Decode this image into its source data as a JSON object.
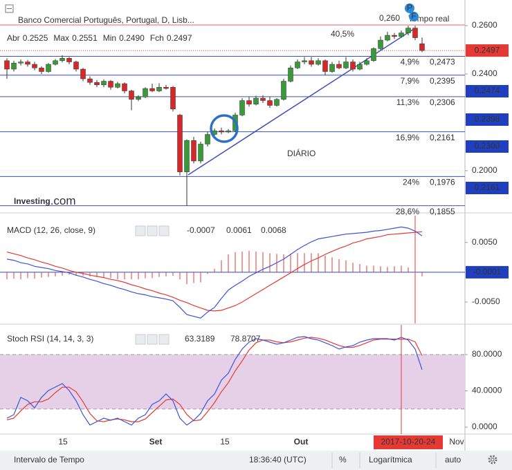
{
  "header": {
    "title": "Banco Comercial Português, Portugal, D, Lisb...",
    "realtime": "Tempo real",
    "ohlc": [
      {
        "label": "Abr",
        "value": "0.2525"
      },
      {
        "label": "Max",
        "value": "0.2551"
      },
      {
        "label": "Min",
        "value": "0.2490"
      },
      {
        "label": "Fch",
        "value": "0.2497"
      }
    ]
  },
  "price_panel": {
    "type": "candlestick",
    "ylim": [
      0.1834,
      0.2706
    ],
    "yticks": [
      {
        "value": 0.26,
        "label": "0.2600"
      },
      {
        "value": 0.24,
        "label": "0.2400"
      },
      {
        "value": 0.2,
        "label": "0.2000"
      }
    ],
    "up_color": "#3a9a3a",
    "down_color": "#d62828",
    "candles": [
      [
        0.2455,
        0.2465,
        0.238,
        0.242
      ],
      [
        0.242,
        0.2455,
        0.241,
        0.2445
      ],
      [
        0.2445,
        0.246,
        0.2435,
        0.245
      ],
      [
        0.245,
        0.2458,
        0.243,
        0.244
      ],
      [
        0.244,
        0.245,
        0.2415,
        0.2425
      ],
      [
        0.2425,
        0.2432,
        0.24,
        0.241
      ],
      [
        0.241,
        0.2445,
        0.2405,
        0.244
      ],
      [
        0.244,
        0.2462,
        0.2435,
        0.2455
      ],
      [
        0.2455,
        0.2478,
        0.2448,
        0.2465
      ],
      [
        0.2465,
        0.247,
        0.244,
        0.245
      ],
      [
        0.245,
        0.2455,
        0.241,
        0.242
      ],
      [
        0.242,
        0.2425,
        0.237,
        0.238
      ],
      [
        0.238,
        0.239,
        0.2355,
        0.2365
      ],
      [
        0.2365,
        0.2375,
        0.2345,
        0.2355
      ],
      [
        0.2355,
        0.2378,
        0.2345,
        0.237
      ],
      [
        0.237,
        0.2375,
        0.2335,
        0.2345
      ],
      [
        0.2345,
        0.2368,
        0.234,
        0.236
      ],
      [
        0.236,
        0.2365,
        0.232,
        0.233
      ],
      [
        0.233,
        0.2335,
        0.225,
        0.2295
      ],
      [
        0.2295,
        0.2312,
        0.2288,
        0.2305
      ],
      [
        0.2305,
        0.2345,
        0.23,
        0.234
      ],
      [
        0.234,
        0.236,
        0.2325,
        0.233
      ],
      [
        0.233,
        0.2362,
        0.2325,
        0.2345
      ],
      [
        0.2345,
        0.2355,
        0.2335,
        0.234
      ],
      [
        0.2345,
        0.235,
        0.2245,
        0.2255
      ],
      [
        0.223,
        0.2235,
        0.198,
        0.1995
      ],
      [
        0.1995,
        0.213,
        0.1855,
        0.2125
      ],
      [
        0.2125,
        0.214,
        0.203,
        0.204
      ],
      [
        0.204,
        0.212,
        0.203,
        0.211
      ],
      [
        0.211,
        0.216,
        0.21,
        0.215
      ],
      [
        0.215,
        0.2175,
        0.214,
        0.2165
      ],
      [
        0.2165,
        0.2178,
        0.215,
        0.216
      ],
      [
        0.216,
        0.2172,
        0.2155,
        0.2165
      ],
      [
        0.2165,
        0.224,
        0.216,
        0.223
      ],
      [
        0.223,
        0.23,
        0.2225,
        0.229
      ],
      [
        0.229,
        0.2305,
        0.2265,
        0.2275
      ],
      [
        0.2275,
        0.231,
        0.227,
        0.23
      ],
      [
        0.23,
        0.2312,
        0.228,
        0.229
      ],
      [
        0.229,
        0.2305,
        0.226,
        0.227
      ],
      [
        0.227,
        0.23,
        0.2265,
        0.2295
      ],
      [
        0.2295,
        0.238,
        0.229,
        0.237
      ],
      [
        0.237,
        0.2435,
        0.2365,
        0.2425
      ],
      [
        0.2425,
        0.246,
        0.242,
        0.245
      ],
      [
        0.245,
        0.247,
        0.244,
        0.2455
      ],
      [
        0.2455,
        0.247,
        0.243,
        0.244
      ],
      [
        0.244,
        0.2465,
        0.2435,
        0.2455
      ],
      [
        0.2455,
        0.246,
        0.2395,
        0.241
      ],
      [
        0.241,
        0.245,
        0.2405,
        0.244
      ],
      [
        0.244,
        0.2455,
        0.242,
        0.2425
      ],
      [
        0.2425,
        0.247,
        0.242,
        0.245
      ],
      [
        0.245,
        0.246,
        0.241,
        0.242
      ],
      [
        0.242,
        0.245,
        0.2415,
        0.244
      ],
      [
        0.244,
        0.2465,
        0.2435,
        0.2455
      ],
      [
        0.2455,
        0.251,
        0.245,
        0.2505
      ],
      [
        0.2505,
        0.2555,
        0.25,
        0.254
      ],
      [
        0.254,
        0.2575,
        0.2535,
        0.256
      ],
      [
        0.256,
        0.257,
        0.2545,
        0.2555
      ],
      [
        0.2555,
        0.258,
        0.255,
        0.257
      ],
      [
        0.257,
        0.26,
        0.256,
        0.259
      ],
      [
        0.259,
        0.26,
        0.254,
        0.255
      ],
      [
        0.2525,
        0.2551,
        0.249,
        0.2497
      ]
    ],
    "annotations": {
      "price": "0,260",
      "change": "40,5%",
      "timeframe": "DIÁRIO"
    },
    "fib_levels": [
      {
        "pct": "4,9%",
        "label": "0,2473",
        "value": 0.2473
      },
      {
        "pct": "7,9%",
        "label": "0,2395",
        "value": 0.2395
      },
      {
        "pct": "11,3%",
        "label": "0,2306",
        "value": 0.2306
      },
      {
        "pct": "16,9%",
        "label": "0,2161",
        "value": 0.2161
      },
      {
        "pct": "24%",
        "label": "0,1976",
        "value": 0.1976
      },
      {
        "pct": "28,6%",
        "label": "0,1855",
        "value": 0.1855
      }
    ],
    "last_price": {
      "value": 0.2497,
      "label": "0.2497"
    },
    "axis_badges": [
      "0.2474",
      "0.2398",
      "0.2300",
      "0.2161"
    ],
    "watermark": {
      "brand": "Investing",
      "suffix": ".com"
    }
  },
  "macd_panel": {
    "type": "macd",
    "title": "MACD (12, 26, close, 9)",
    "ylim": [
      -0.0086,
      0.0095
    ],
    "yticks": [
      {
        "value": 0.005,
        "label": "0.0050"
      },
      {
        "value": -0.005,
        "label": "-0.0050"
      }
    ],
    "badge": "-0.0001",
    "macd": {
      "color": "#3f51d5",
      "values": [
        0.0022,
        0.002,
        0.0016,
        0.0014,
        0.001,
        0.0008,
        0.0006,
        0.0003,
        0.0001,
        -0.0001,
        -0.0005,
        -0.0008,
        -0.0012,
        -0.0015,
        -0.0019,
        -0.0022,
        -0.0026,
        -0.0029,
        -0.0033,
        -0.0036,
        -0.0038,
        -0.0041,
        -0.0043,
        -0.0045,
        -0.0048,
        -0.0059,
        -0.0071,
        -0.0074,
        -0.0077,
        -0.0067,
        -0.0059,
        -0.0044,
        -0.003,
        -0.0022,
        -0.0015,
        -0.0007,
        -0.0001,
        0.0005,
        0.001,
        0.0016,
        0.0022,
        0.003,
        0.0038,
        0.0045,
        0.0051,
        0.0056,
        0.0058,
        0.006,
        0.0062,
        0.0064,
        0.0065,
        0.0066,
        0.0067,
        0.0069,
        0.007,
        0.0072,
        0.0074,
        0.0076,
        0.0074,
        0.0069,
        0.0061
      ]
    },
    "signal": {
      "color": "#e53935",
      "values": [
        0.0034,
        0.0031,
        0.0028,
        0.0024,
        0.0021,
        0.0017,
        0.0014,
        0.001,
        0.0007,
        0.0003,
        0,
        -0.0002,
        -0.0005,
        -0.0007,
        -0.0009,
        -0.0012,
        -0.0014,
        -0.0017,
        -0.0021,
        -0.0024,
        -0.0028,
        -0.0031,
        -0.0035,
        -0.0038,
        -0.0042,
        -0.0047,
        -0.0051,
        -0.0056,
        -0.006,
        -0.0064,
        -0.0065,
        -0.0064,
        -0.006,
        -0.0056,
        -0.005,
        -0.0043,
        -0.0036,
        -0.0029,
        -0.0022,
        -0.0015,
        -0.0008,
        -0.0001,
        0.0006,
        0.0013,
        0.0019,
        0.0024,
        0.003,
        0.0035,
        0.004,
        0.0044,
        0.0049,
        0.0052,
        0.0056,
        0.0058,
        0.006,
        0.0063,
        0.0064,
        0.0065,
        0.0066,
        0.0067,
        0.0068
      ]
    },
    "histogram": {
      "color": "#e53935",
      "values": [
        -0.0012,
        -0.0011,
        -0.0012,
        -0.001,
        -0.0011,
        -0.0009,
        -0.0008,
        -0.0007,
        -0.0006,
        -0.0004,
        -0.0005,
        -0.0006,
        -0.0007,
        -0.0008,
        -0.001,
        -0.001,
        -0.0012,
        -0.0012,
        -0.0012,
        -0.0012,
        -0.001,
        -0.001,
        -0.0008,
        -0.0007,
        -0.0006,
        -0.0012,
        -0.002,
        -0.0018,
        -0.0017,
        -0.0003,
        0.0006,
        0.002,
        0.003,
        0.0034,
        0.0035,
        0.0036,
        0.0035,
        0.0034,
        0.0032,
        0.0031,
        0.003,
        0.0031,
        0.0032,
        0.0032,
        0.0032,
        0.0032,
        0.0028,
        0.0025,
        0.0022,
        0.002,
        0.0016,
        0.0014,
        0.0011,
        0.0011,
        0.001,
        0.0009,
        0.001,
        0.0011,
        0.0008,
        0.0002,
        -0.0007
      ]
    }
  },
  "stoch_panel": {
    "type": "stoch_rsi",
    "title": "Stoch RSI (14, 14, 3, 3)",
    "ylim": [
      -7.6,
      111.2
    ],
    "yticks": [
      {
        "value": 80,
        "label": "80.0000"
      },
      {
        "value": 40,
        "label": "40.0000"
      },
      {
        "value": 0,
        "label": "0.0000"
      }
    ],
    "band": [
      20,
      80
    ],
    "band_color": "#e6d0e8",
    "k": {
      "color": "#3f51d5",
      "values": [
        9.9,
        13.7,
        32.8,
        29,
        21.3,
        32.8,
        40.4,
        44.2,
        48,
        40.4,
        29,
        13.7,
        2.3,
        6.1,
        9.9,
        7.6,
        9.9,
        6.1,
        2.3,
        9.9,
        13.7,
        25.1,
        29,
        36.6,
        29,
        9.9,
        2.3,
        7.6,
        15.2,
        29,
        36.6,
        51.8,
        59.4,
        74.7,
        86.1,
        93.7,
        97.5,
        96,
        93.7,
        91.4,
        93,
        96,
        99,
        99.8,
        97.5,
        96,
        93,
        89.9,
        86.1,
        88.4,
        89.9,
        93.7,
        96,
        97.5,
        97.5,
        97.5,
        96,
        99,
        96,
        86.1,
        63.3189
      ]
    },
    "d": {
      "color": "#e53935",
      "values": [
        8,
        10,
        18,
        25,
        28,
        28,
        31,
        38,
        44,
        44,
        39,
        28,
        15,
        7,
        6,
        8,
        9,
        8,
        6,
        6,
        9,
        16,
        23,
        30,
        31,
        25,
        14,
        7,
        8,
        17,
        27,
        39,
        49,
        62,
        73,
        85,
        93,
        96,
        96,
        94,
        93,
        94,
        96,
        98,
        99,
        98,
        96,
        93,
        90,
        88,
        88,
        90,
        93,
        96,
        97,
        97,
        97,
        97,
        97,
        94,
        78.8707
      ]
    }
  },
  "x_labels": [
    "15",
    "Set",
    "15",
    "Out",
    "Nov"
  ],
  "cursor_date": "2017-10-20-24",
  "footer": {
    "interval": "Intervalo de Tempo",
    "time": "18:36:40 (UTC)",
    "percent": "%",
    "scale": "Logarítmica",
    "auto": "auto"
  }
}
